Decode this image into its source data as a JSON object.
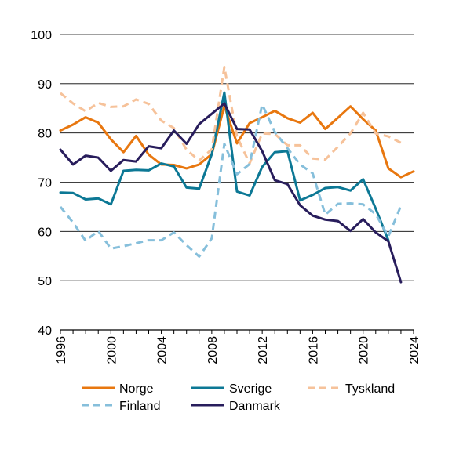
{
  "chart_data": {
    "type": "line",
    "title": "",
    "xlabel": "",
    "ylabel": "",
    "x": [
      1996,
      1997,
      1998,
      1999,
      2000,
      2001,
      2002,
      2003,
      2004,
      2005,
      2006,
      2007,
      2008,
      2009,
      2010,
      2011,
      2012,
      2013,
      2014,
      2015,
      2016,
      2017,
      2018,
      2019,
      2020,
      2021,
      2022,
      2023,
      2024
    ],
    "xlim": [
      1996,
      2024
    ],
    "ylim": [
      40,
      100
    ],
    "x_ticks": [
      "1996",
      "2000",
      "2004",
      "2008",
      "2012",
      "2016",
      "2020",
      "2024"
    ],
    "y_ticks": [
      "40",
      "50",
      "60",
      "70",
      "80",
      "90",
      "100"
    ],
    "grid": "horizontal",
    "legend_position": "bottom",
    "colors": {
      "Norge": "#e8770f",
      "Sverige": "#0c7895",
      "Tyskland": "#f6c29a",
      "Finland": "#86bfdb",
      "Danmark": "#281d5c"
    },
    "series": [
      {
        "name": "Norge",
        "style": "solid",
        "values": [
          80.5,
          81.7,
          83.2,
          82.1,
          78.7,
          76.1,
          79.4,
          75.6,
          73.6,
          73.5,
          72.8,
          73.6,
          75.7,
          85.5,
          77.9,
          82.0,
          83.2,
          84.5,
          83.0,
          82.1,
          84.1,
          80.8,
          83.1,
          85.4,
          82.8,
          80.5,
          72.8,
          71.0,
          72.2
        ]
      },
      {
        "name": "Sverige",
        "style": "solid",
        "values": [
          67.9,
          67.8,
          66.5,
          66.7,
          65.5,
          72.3,
          72.5,
          72.4,
          73.8,
          73.2,
          68.9,
          68.7,
          75.7,
          88.2,
          68.1,
          67.3,
          73.1,
          76.1,
          76.3,
          66.3,
          67.4,
          68.8,
          69.0,
          68.3,
          70.6,
          64.6,
          58.2,
          null,
          null
        ]
      },
      {
        "name": "Tyskland",
        "style": "dashed",
        "values": [
          88.1,
          86.0,
          84.4,
          86.1,
          85.3,
          85.4,
          86.8,
          85.9,
          82.5,
          81.0,
          76.6,
          74.4,
          76.7,
          93.4,
          79.3,
          73.8,
          79.9,
          79.8,
          77.5,
          77.5,
          74.8,
          74.6,
          77.2,
          79.9,
          84.1,
          79.9,
          79.3,
          78.0,
          null
        ]
      },
      {
        "name": "Finland",
        "style": "dashed",
        "values": [
          65.0,
          61.8,
          58.1,
          60.1,
          56.5,
          57.0,
          57.6,
          58.2,
          58.2,
          59.8,
          57.2,
          54.9,
          58.6,
          77.8,
          71.6,
          73.7,
          85.8,
          80.2,
          76.9,
          73.6,
          71.8,
          63.4,
          65.6,
          65.7,
          65.5,
          63.5,
          59.0,
          65.2,
          null
        ]
      },
      {
        "name": "Danmark",
        "style": "solid",
        "values": [
          76.6,
          73.6,
          75.4,
          75.0,
          72.3,
          74.5,
          74.2,
          77.3,
          76.9,
          80.5,
          77.8,
          81.8,
          83.9,
          86.0,
          80.8,
          80.7,
          76.3,
          70.4,
          69.6,
          65.3,
          63.2,
          62.4,
          62.1,
          60.1,
          62.5,
          59.8,
          58.0,
          49.7,
          null
        ]
      }
    ]
  }
}
